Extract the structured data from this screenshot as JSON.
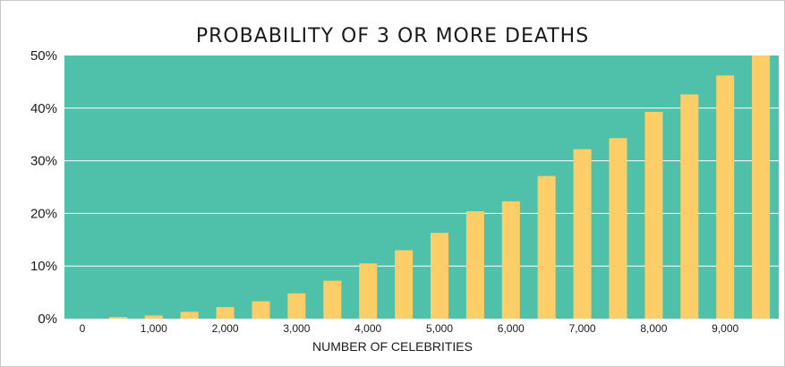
{
  "chart_data": {
    "type": "bar",
    "title": "PROBABILITY OF 3 OR MORE DEATHS",
    "xlabel": "NUMBER OF CELEBRITIES",
    "ylabel": "",
    "x": [
      0,
      500,
      1000,
      1500,
      2000,
      2500,
      3000,
      3500,
      4000,
      4500,
      5000,
      5500,
      6000,
      6500,
      7000,
      7500,
      8000,
      8500,
      9000,
      9500
    ],
    "values": [
      0,
      0.3,
      0.6,
      1.3,
      2.2,
      3.3,
      4.8,
      7.2,
      10.5,
      13,
      16.3,
      20.4,
      22.3,
      27.1,
      32.2,
      34.3,
      39.3,
      42.6,
      46.2,
      50
    ],
    "xticks": [
      {
        "value": 0,
        "label": "0"
      },
      {
        "value": 1000,
        "label": "1,000"
      },
      {
        "value": 2000,
        "label": "2,000"
      },
      {
        "value": 3000,
        "label": "3,000"
      },
      {
        "value": 4000,
        "label": "4,000"
      },
      {
        "value": 5000,
        "label": "5,000"
      },
      {
        "value": 6000,
        "label": "6,000"
      },
      {
        "value": 7000,
        "label": "7,000"
      },
      {
        "value": 8000,
        "label": "8,000"
      },
      {
        "value": 9000,
        "label": "9,000"
      }
    ],
    "yticks": [
      {
        "value": 0,
        "label": "0%"
      },
      {
        "value": 10,
        "label": "10%"
      },
      {
        "value": 20,
        "label": "20%"
      },
      {
        "value": 30,
        "label": "30%"
      },
      {
        "value": 40,
        "label": "40%"
      },
      {
        "value": 50,
        "label": "50%"
      }
    ],
    "ylim": [
      0,
      50
    ],
    "grid": true,
    "colors": {
      "plot_background": "#4fc1ab",
      "bar": "#fdce67",
      "gridline": "#ffffff"
    }
  }
}
